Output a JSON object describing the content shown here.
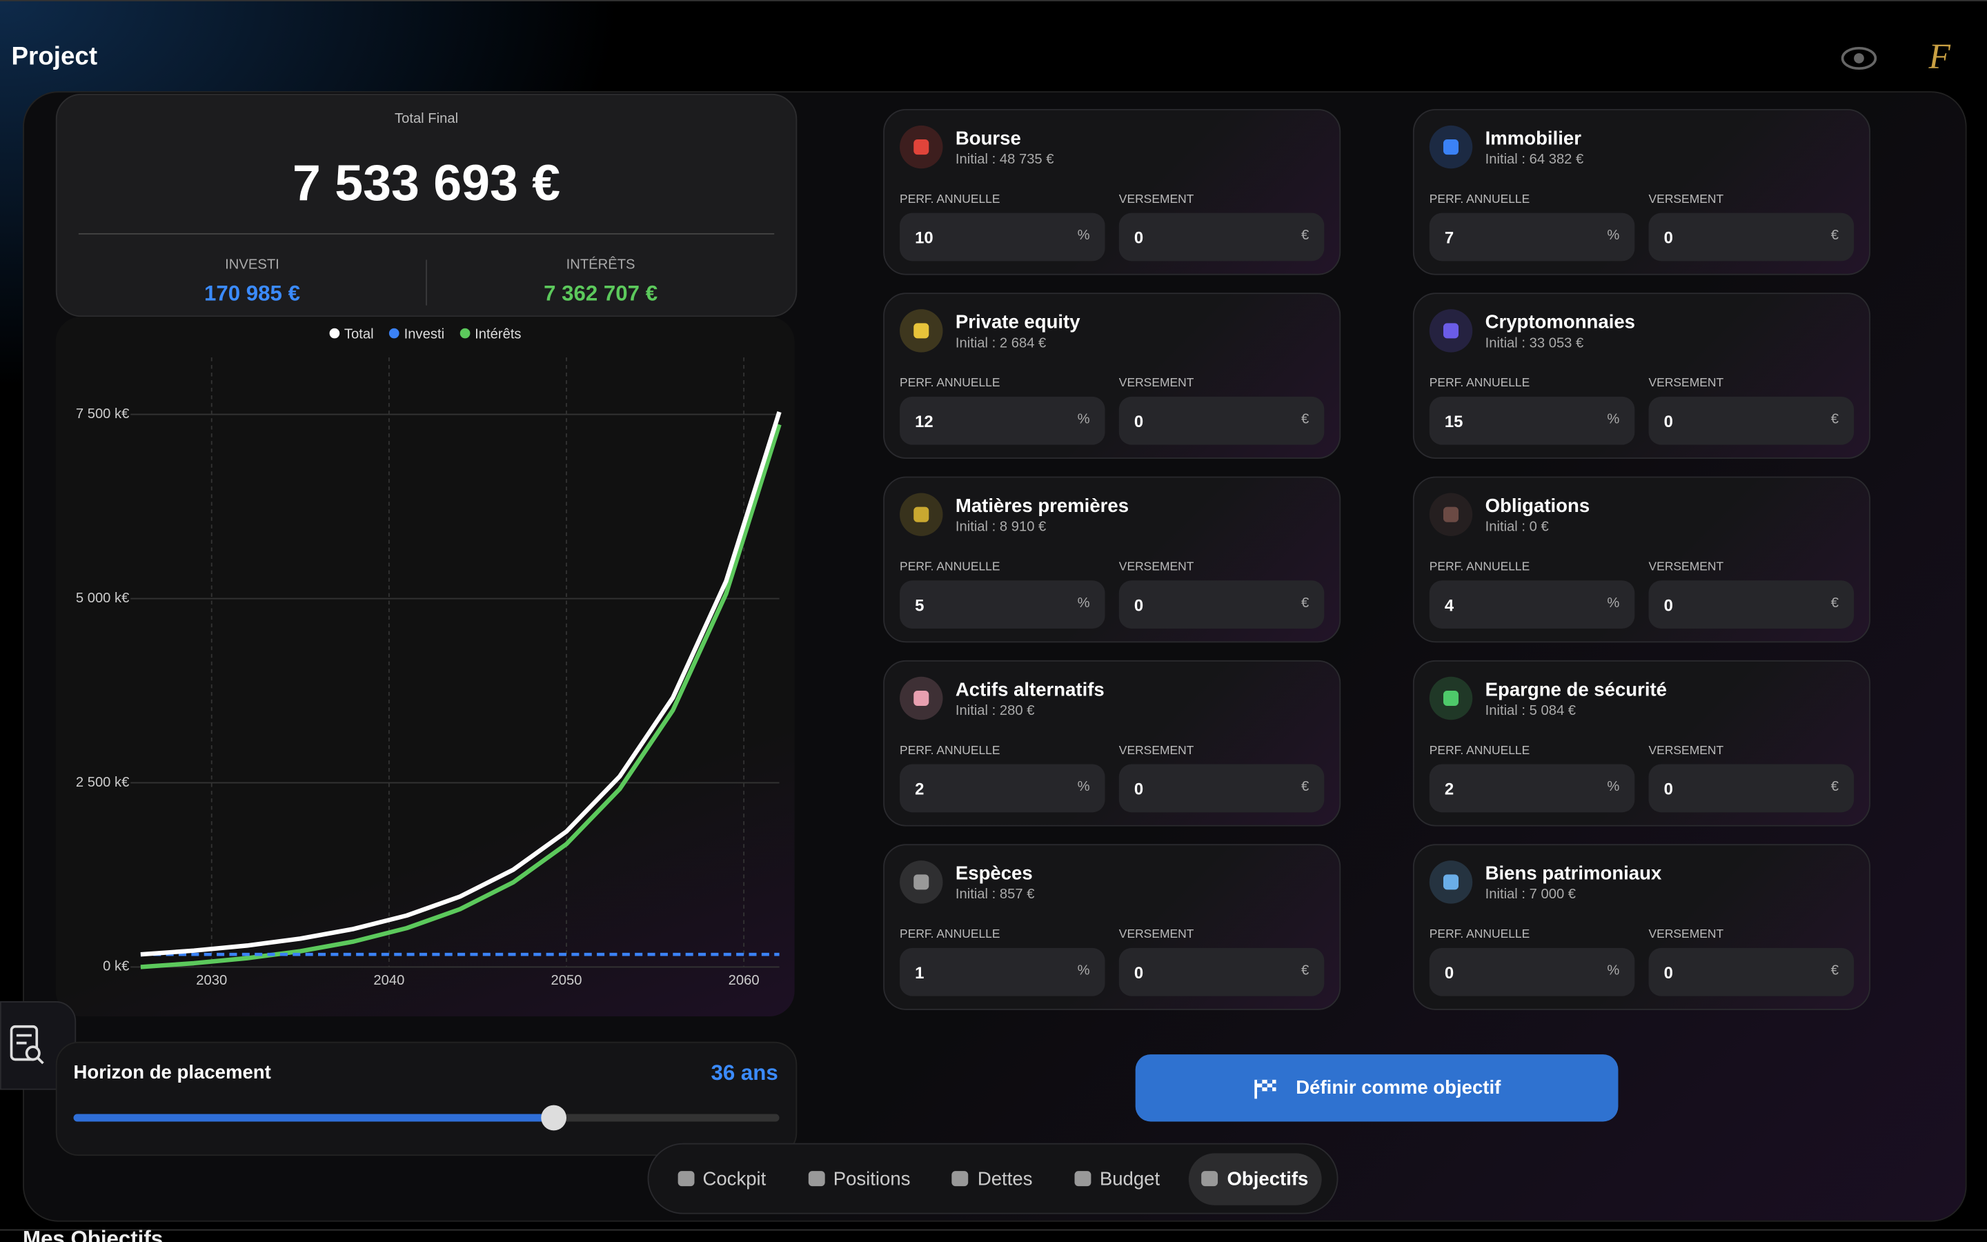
{
  "header": {
    "title": "Project"
  },
  "summary": {
    "label": "Total Final",
    "total": "7 533 693 €",
    "invested_label": "INVESTI",
    "invested": "170 985 €",
    "interest_label": "INTÉRÊTS",
    "interest": "7 362 707 €"
  },
  "chart_data": {
    "type": "line",
    "x": [
      2026,
      2029,
      2032,
      2035,
      2038,
      2041,
      2044,
      2047,
      2050,
      2053,
      2056,
      2059,
      2062
    ],
    "series": [
      {
        "name": "Total",
        "color": "#ffffff",
        "values": [
          171.0,
          221.7,
          290.6,
          385.2,
          516.0,
          698.6,
          955.4,
          1319.3,
          1838.9,
          2585.8,
          3655.8,
          5236.8,
          7533.7
        ]
      },
      {
        "name": "Investi",
        "color": "#3b82f6",
        "dashed": true,
        "values": [
          171.0,
          171.0,
          171.0,
          171.0,
          171.0,
          171.0,
          171.0,
          171.0,
          171.0,
          171.0,
          171.0,
          171.0,
          171.0
        ]
      },
      {
        "name": "Intérêts",
        "color": "#5cc95c",
        "values": [
          0,
          50.7,
          119.6,
          214.2,
          345.0,
          527.6,
          784.4,
          1148.3,
          1667.9,
          2414.8,
          3484.8,
          5065.8,
          7362.7
        ]
      }
    ],
    "xlim": [
      2026,
      2062
    ],
    "xticks": [
      2030,
      2040,
      2050,
      2060
    ],
    "ylim": [
      0,
      7500
    ],
    "yticks": [
      {
        "value": 0,
        "label": "0 k€"
      },
      {
        "value": 2500,
        "label": "2 500 k€"
      },
      {
        "value": 5000,
        "label": "5 000 k€"
      },
      {
        "value": 7500,
        "label": "7 500 k€"
      }
    ],
    "grid": true
  },
  "horizon": {
    "label": "Horizon de placement",
    "value": "36 ans"
  },
  "field_labels": {
    "perf": "PERF. ANNUELLE",
    "deposit": "VERSEMENT",
    "pct": "%",
    "eur": "€"
  },
  "assets": [
    {
      "name": "Bourse",
      "initial": "Initial : 48 735 €",
      "perf": "10",
      "deposit": "0",
      "color": "#e0443a"
    },
    {
      "name": "Immobilier",
      "initial": "Initial : 64 382 €",
      "perf": "7",
      "deposit": "0",
      "color": "#3b82f6"
    },
    {
      "name": "Private equity",
      "initial": "Initial : 2 684 €",
      "perf": "12",
      "deposit": "0",
      "color": "#e8c43a"
    },
    {
      "name": "Cryptomonnaies",
      "initial": "Initial : 33 053 €",
      "perf": "15",
      "deposit": "0",
      "color": "#6b5ce7"
    },
    {
      "name": "Matières premières",
      "initial": "Initial : 8 910 €",
      "perf": "5",
      "deposit": "0",
      "color": "#c9a830"
    },
    {
      "name": "Obligations",
      "initial": "Initial : 0 €",
      "perf": "4",
      "deposit": "0",
      "color": "#6b4a44"
    },
    {
      "name": "Actifs alternatifs",
      "initial": "Initial : 280 €",
      "perf": "2",
      "deposit": "0",
      "color": "#e8a0b0"
    },
    {
      "name": "Epargne de sécurité",
      "initial": "Initial : 5 084 €",
      "perf": "2",
      "deposit": "0",
      "color": "#4ec96a"
    },
    {
      "name": "Espèces",
      "initial": "Initial : 857 €",
      "perf": "1",
      "deposit": "0",
      "color": "#999999"
    },
    {
      "name": "Biens patrimoniaux",
      "initial": "Initial : 7 000 €",
      "perf": "0",
      "deposit": "0",
      "color": "#6aaee8"
    }
  ],
  "cta": "Définir comme objectif",
  "nav": [
    "Cockpit",
    "Positions",
    "Dettes",
    "Budget",
    "Objectifs"
  ],
  "footer": "Mes Objectifs"
}
